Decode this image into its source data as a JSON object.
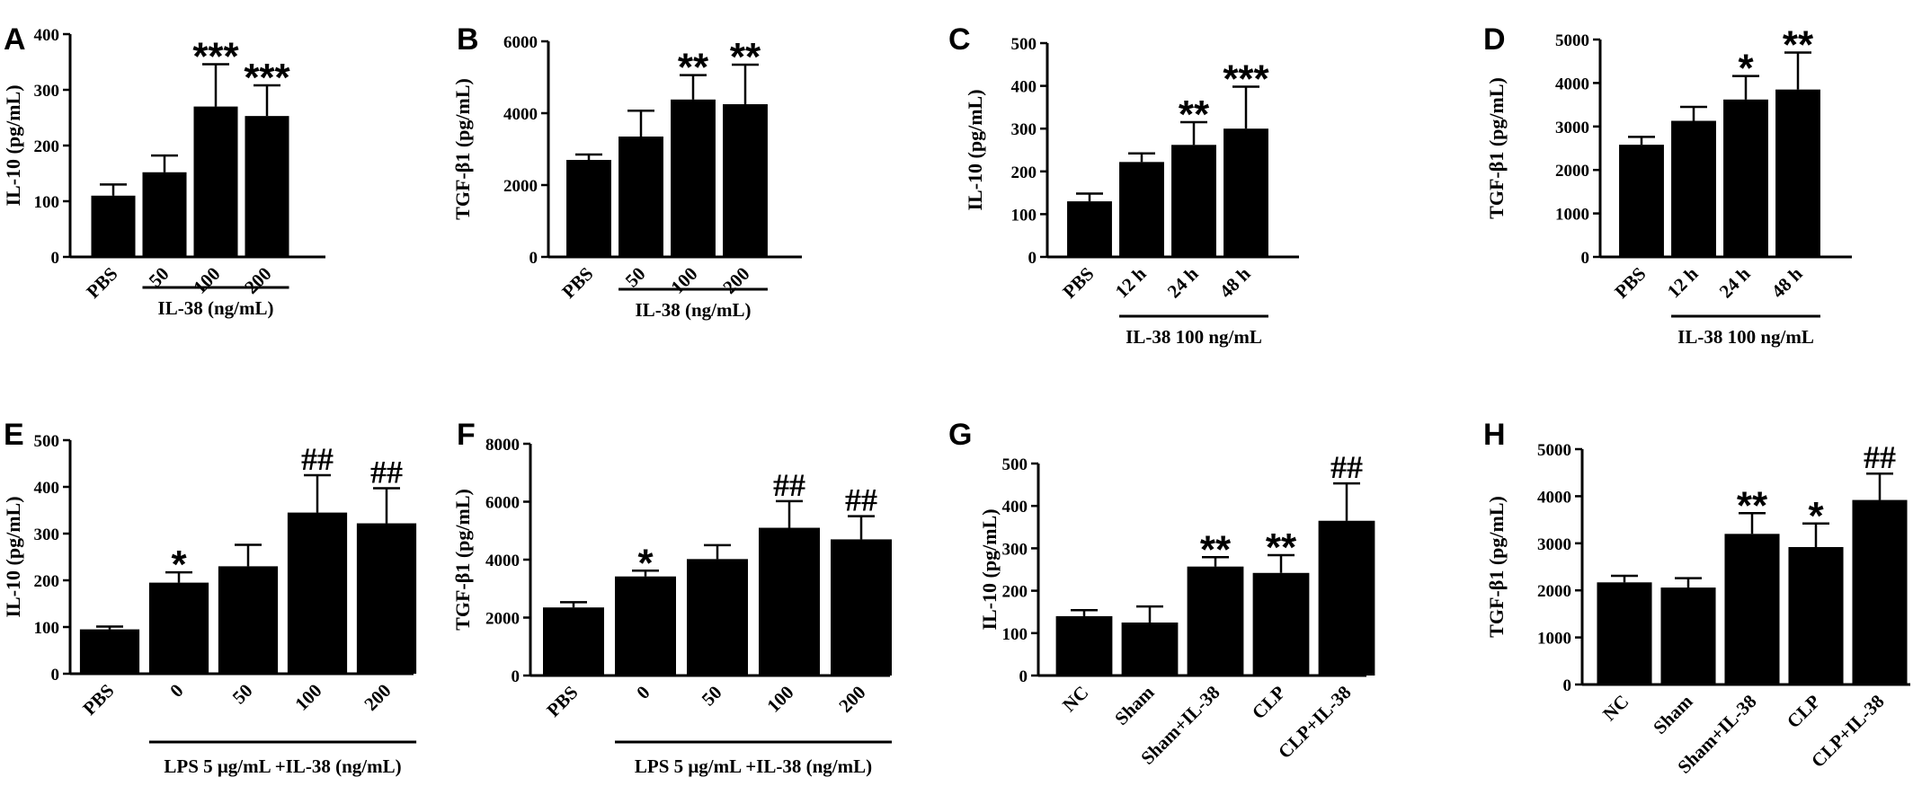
{
  "chart_data": [
    {
      "panel": "A",
      "type": "bar",
      "ylabel": "IL-10 (pg/mL)",
      "ylim": [
        0,
        400
      ],
      "yticks": [
        0,
        100,
        200,
        300,
        400
      ],
      "categories": [
        "PBS",
        "50",
        "100",
        "200"
      ],
      "values": [
        110,
        152,
        270,
        253
      ],
      "errors": [
        20,
        30,
        76,
        55
      ],
      "annotations": [
        "",
        "",
        "***",
        "***"
      ],
      "group_label": "IL-38 (ng/mL)",
      "group_span": [
        1,
        3
      ]
    },
    {
      "panel": "B",
      "type": "bar",
      "ylabel": "TGF-β1 (pg/mL)",
      "ylim": [
        0,
        6000
      ],
      "yticks": [
        0,
        2000,
        4000,
        6000
      ],
      "categories": [
        "PBS",
        "50",
        "100",
        "200"
      ],
      "values": [
        2700,
        3350,
        4380,
        4250
      ],
      "errors": [
        150,
        720,
        680,
        1100
      ],
      "annotations": [
        "",
        "",
        "**",
        "**"
      ],
      "group_label": "IL-38 (ng/mL)",
      "group_span": [
        1,
        3
      ]
    },
    {
      "panel": "C",
      "type": "bar",
      "ylabel": "IL-10 (pg/mL)",
      "ylim": [
        0,
        500
      ],
      "yticks": [
        0,
        100,
        200,
        300,
        400,
        500
      ],
      "categories": [
        "PBS",
        "12 h",
        "24 h",
        "48 h"
      ],
      "values": [
        130,
        222,
        262,
        300
      ],
      "errors": [
        18,
        20,
        53,
        98
      ],
      "annotations": [
        "",
        "",
        "**",
        "***"
      ],
      "group_label": "IL-38 100 ng/mL",
      "group_span": [
        1,
        3
      ]
    },
    {
      "panel": "D",
      "type": "bar",
      "ylabel": "TGF-β1 (pg/mL)",
      "ylim": [
        0,
        5000
      ],
      "yticks": [
        0,
        1000,
        2000,
        3000,
        4000,
        5000
      ],
      "categories": [
        "PBS",
        "12 h",
        "24 h",
        "48 h"
      ],
      "values": [
        2580,
        3130,
        3620,
        3850
      ],
      "errors": [
        180,
        320,
        540,
        850
      ],
      "annotations": [
        "",
        "",
        "*",
        "**"
      ],
      "group_label": "IL-38 100 ng/mL",
      "group_span": [
        1,
        3
      ]
    },
    {
      "panel": "E",
      "type": "bar",
      "ylabel": "IL-10 (pg/mL)",
      "ylim": [
        0,
        500
      ],
      "yticks": [
        0,
        100,
        200,
        300,
        400,
        500
      ],
      "categories": [
        "PBS",
        "0",
        "50",
        "100",
        "200"
      ],
      "values": [
        95,
        195,
        230,
        345,
        322
      ],
      "errors": [
        6,
        22,
        46,
        80,
        75
      ],
      "annotations": [
        "",
        "*",
        "",
        "##",
        "##"
      ],
      "group_label": "LPS 5 μg/mL +IL-38 (ng/mL)",
      "group_span": [
        1,
        4
      ]
    },
    {
      "panel": "F",
      "type": "bar",
      "ylabel": "TGF-β1 (pg/mL)",
      "ylim": [
        0,
        8000
      ],
      "yticks": [
        0,
        2000,
        4000,
        6000,
        8000
      ],
      "categories": [
        "PBS",
        "0",
        "50",
        "100",
        "200"
      ],
      "values": [
        2350,
        3420,
        4020,
        5100,
        4700
      ],
      "errors": [
        180,
        200,
        480,
        920,
        800
      ],
      "annotations": [
        "",
        "*",
        "",
        "##",
        "##"
      ],
      "group_label": "LPS 5 μg/mL +IL-38 (ng/mL)",
      "group_span": [
        1,
        4
      ]
    },
    {
      "panel": "G",
      "type": "bar",
      "ylabel": "IL-10 (pg/mL)",
      "ylim": [
        0,
        500
      ],
      "yticks": [
        0,
        100,
        200,
        300,
        400,
        500
      ],
      "categories": [
        "NC",
        "Sham",
        "Sham+IL-38",
        "CLP",
        "CLP+IL-38"
      ],
      "values": [
        140,
        125,
        257,
        242,
        365
      ],
      "errors": [
        14,
        38,
        22,
        42,
        88
      ],
      "annotations": [
        "",
        "",
        "**",
        "**",
        "##"
      ]
    },
    {
      "panel": "H",
      "type": "bar",
      "ylabel": "TGF-β1 (pg/mL)",
      "ylim": [
        0,
        5000
      ],
      "yticks": [
        0,
        1000,
        2000,
        3000,
        4000,
        5000
      ],
      "categories": [
        "NC",
        "Sham",
        "Sham+IL-38",
        "CLP",
        "CLP+IL-38"
      ],
      "values": [
        2170,
        2060,
        3200,
        2920,
        3920
      ],
      "errors": [
        140,
        200,
        440,
        500,
        560
      ],
      "annotations": [
        "",
        "",
        "**",
        "*",
        "##"
      ]
    }
  ]
}
